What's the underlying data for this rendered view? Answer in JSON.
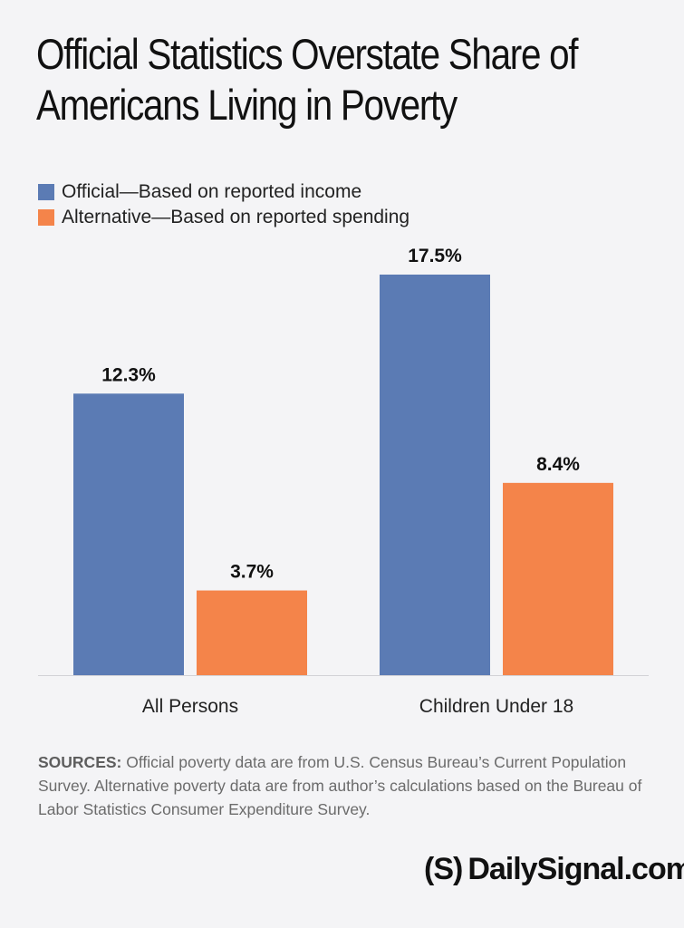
{
  "title": "Official Statistics Overstate Share of Americans Living in Poverty",
  "legend": [
    {
      "label": "Official—Based on reported income",
      "color": "#5b7bb4"
    },
    {
      "label": "Alternative—Based on reported spending",
      "color": "#f4844a"
    }
  ],
  "chart_data": {
    "type": "bar",
    "categories": [
      "All Persons",
      "Children Under 18"
    ],
    "series": [
      {
        "name": "Official—Based on reported income",
        "values": [
          12.3,
          17.5
        ],
        "labels": [
          "12.3%",
          "17.5%"
        ],
        "color": "#5b7bb4"
      },
      {
        "name": "Alternative—Based on reported spending",
        "values": [
          3.7,
          8.4
        ],
        "labels": [
          "3.7%",
          "8.4%"
        ],
        "color": "#f4844a"
      }
    ],
    "title": "Official Statistics Overstate Share of Americans Living in Poverty",
    "xlabel": "",
    "ylabel": "",
    "ylim": [
      0,
      17.5
    ],
    "grid": false,
    "legend_position": "top-left"
  },
  "sources": {
    "label": "SOURCES:",
    "text": "Official poverty data are from U.S. Census Bureau’s Current Population Survey. Alternative poverty data are from author’s calculations based on the Bureau of Labor Statistics Consumer Expenditure Survey."
  },
  "brand": {
    "logo": "(S)",
    "text": "DailySignal.com"
  }
}
